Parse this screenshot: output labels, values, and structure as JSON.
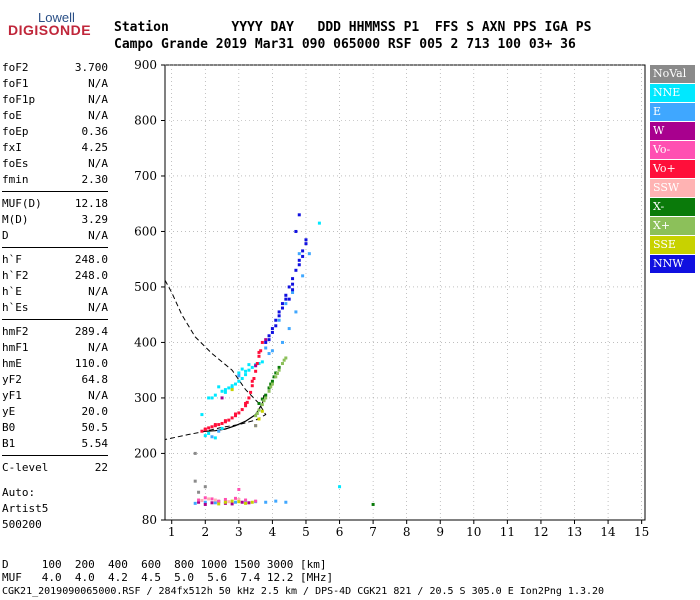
{
  "logo": {
    "line1": "Lowell",
    "line2": "DIGISONDE"
  },
  "header": {
    "row1": "Station        YYYY DAY   DDD HHMMSS P1  FFS S AXN PPS IGA PS",
    "row2": "Campo Grande 2019 Mar31 090 065000 RSF 005 2 713 100 03+ 36"
  },
  "params": [
    {
      "label": "foF2",
      "value": "3.700"
    },
    {
      "label": "foF1",
      "value": "N/A"
    },
    {
      "label": "foF1p",
      "value": "N/A"
    },
    {
      "label": "foE",
      "value": "N/A"
    },
    {
      "label": "foEp",
      "value": "0.36"
    },
    {
      "label": "fxI",
      "value": "4.25"
    },
    {
      "label": "foEs",
      "value": "N/A"
    },
    {
      "label": "fmin",
      "value": "2.30"
    },
    {
      "label": "MUF(D)",
      "value": "12.18"
    },
    {
      "label": "M(D)",
      "value": "3.29"
    },
    {
      "label": "D",
      "value": "N/A"
    },
    {
      "label": "h`F",
      "value": "248.0"
    },
    {
      "label": "h`F2",
      "value": "248.0"
    },
    {
      "label": "h`E",
      "value": "N/A"
    },
    {
      "label": "h`Es",
      "value": "N/A"
    },
    {
      "label": "hmF2",
      "value": "289.4"
    },
    {
      "label": "hmF1",
      "value": "N/A"
    },
    {
      "label": "hmE",
      "value": "110.0"
    },
    {
      "label": "yF2",
      "value": "64.8"
    },
    {
      "label": "yF1",
      "value": "N/A"
    },
    {
      "label": "yE",
      "value": "20.0"
    },
    {
      "label": "B0",
      "value": "50.5"
    },
    {
      "label": "B1",
      "value": "5.54"
    },
    {
      "label": "C-level",
      "value": "22"
    }
  ],
  "auto": {
    "line1": "Auto:",
    "line2": "Artist5",
    "line3": "500200"
  },
  "legend": [
    {
      "name": "NoVal",
      "bg": "#8a8a8a",
      "fg": "#ffffff"
    },
    {
      "name": "NNE",
      "bg": "#00e8ff",
      "fg": "#ffffff"
    },
    {
      "name": "E",
      "bg": "#3fa7ff",
      "fg": "#ffffff"
    },
    {
      "name": "W",
      "bg": "#a8008e",
      "fg": "#ffffff"
    },
    {
      "name": "Vo-",
      "bg": "#ff4fb2",
      "fg": "#ffffff"
    },
    {
      "name": "Vo+",
      "bg": "#ff0f3a",
      "fg": "#ffffff"
    },
    {
      "name": "SSW",
      "bg": "#ffb3b3",
      "fg": "#ffffff"
    },
    {
      "name": "X-",
      "bg": "#0a7a0a",
      "fg": "#ffffff"
    },
    {
      "name": "X+",
      "bg": "#8cc05a",
      "fg": "#ffffff"
    },
    {
      "name": "SSE",
      "bg": "#c8d200",
      "fg": "#ffffff"
    },
    {
      "name": "NNW",
      "bg": "#1010e0",
      "fg": "#ffffff"
    }
  ],
  "bottom": {
    "d_row": "D     100  200  400  600  800 1000 1500 3000 [km]",
    "muf_row": "MUF   4.0  4.0  4.2  4.5  5.0  5.6  7.4 12.2 [MHz]",
    "footer": "CGK21_2019090065000.RSF / 284fx512h 50 kHz 2.5 km / DPS-4D CGK21 821 / 20.5 S 305.0 E Ion2Png 1.3.20"
  },
  "chart_data": {
    "type": "scatter",
    "xlabel": "",
    "ylabel": "",
    "xlim": [
      0.8,
      15.1
    ],
    "ylim": [
      80,
      900
    ],
    "x_ticks": [
      1,
      2,
      3,
      4,
      5,
      6,
      7,
      8,
      9,
      10,
      11,
      12,
      13,
      14,
      15
    ],
    "y_ticks": [
      80,
      200,
      300,
      400,
      500,
      600,
      700,
      800,
      900
    ],
    "grid": "dotted",
    "series": [
      {
        "name": "NNE",
        "color": "#00e8ff",
        "points": [
          [
            2.4,
            320
          ],
          [
            2.6,
            315
          ],
          [
            2.7,
            318
          ],
          [
            2.8,
            322
          ],
          [
            2.9,
            325
          ],
          [
            3.0,
            330
          ],
          [
            3.1,
            335
          ],
          [
            3.2,
            342
          ],
          [
            3.3,
            350
          ],
          [
            3.4,
            355
          ],
          [
            2.2,
            300
          ],
          [
            2.5,
            312
          ],
          [
            3.0,
            345
          ],
          [
            3.1,
            352
          ],
          [
            5.4,
            615
          ],
          [
            2.0,
            232
          ],
          [
            2.1,
            236
          ],
          [
            2.5,
            245
          ],
          [
            2.3,
            228
          ],
          [
            6.0,
            140
          ],
          [
            3.5,
            360
          ],
          [
            3.7,
            365
          ],
          [
            2.6,
            310
          ],
          [
            2.8,
            318
          ],
          [
            3.2,
            348
          ],
          [
            2.1,
            300
          ],
          [
            2.3,
            305
          ],
          [
            3.3,
            360
          ],
          [
            3.6,
            362
          ],
          [
            1.9,
            270
          ]
        ]
      },
      {
        "name": "E",
        "color": "#3fa7ff",
        "points": [
          [
            1.7,
            110
          ],
          [
            2.0,
            112
          ],
          [
            2.3,
            111
          ],
          [
            2.6,
            113
          ],
          [
            2.9,
            112
          ],
          [
            3.2,
            114
          ],
          [
            3.5,
            113
          ],
          [
            3.8,
            112
          ],
          [
            4.1,
            114
          ],
          [
            4.4,
            112
          ],
          [
            2.2,
            230
          ],
          [
            2.4,
            240
          ],
          [
            4.5,
            425
          ],
          [
            4.7,
            455
          ],
          [
            4.9,
            520
          ],
          [
            4.3,
            400
          ],
          [
            4.6,
            490
          ],
          [
            4.0,
            385
          ],
          [
            3.9,
            380
          ],
          [
            3.0,
            340
          ],
          [
            4.8,
            560
          ],
          [
            5.1,
            560
          ],
          [
            4.2,
            440
          ],
          [
            4.4,
            470
          ],
          [
            3.8,
            390
          ]
        ]
      },
      {
        "name": "W",
        "color": "#a8008e",
        "points": [
          [
            1.8,
            112
          ],
          [
            2.0,
            108
          ],
          [
            2.2,
            111
          ],
          [
            2.4,
            113
          ],
          [
            2.6,
            110
          ],
          [
            2.8,
            109
          ],
          [
            3.1,
            112
          ],
          [
            3.3,
            111
          ],
          [
            3.8,
            405
          ],
          [
            3.5,
            358
          ],
          [
            2.5,
            300
          ]
        ]
      },
      {
        "name": "Vo-",
        "color": "#ff4fb2",
        "points": [
          [
            1.8,
            116
          ],
          [
            2.0,
            120
          ],
          [
            2.2,
            118
          ],
          [
            2.4,
            114
          ],
          [
            2.6,
            117
          ],
          [
            2.9,
            119
          ],
          [
            3.2,
            116
          ],
          [
            3.5,
            114
          ],
          [
            3.0,
            135
          ]
        ]
      },
      {
        "name": "Vo+",
        "color": "#ff0f3a",
        "points": [
          [
            2.0,
            243
          ],
          [
            2.1,
            246
          ],
          [
            2.2,
            248
          ],
          [
            2.3,
            250
          ],
          [
            2.4,
            252
          ],
          [
            2.5,
            254
          ],
          [
            2.6,
            257
          ],
          [
            2.7,
            260
          ],
          [
            2.8,
            264
          ],
          [
            2.9,
            268
          ],
          [
            3.0,
            273
          ],
          [
            3.1,
            279
          ],
          [
            3.2,
            286
          ],
          [
            3.25,
            292
          ],
          [
            3.3,
            300
          ],
          [
            3.35,
            310
          ],
          [
            3.4,
            322
          ],
          [
            3.45,
            335
          ],
          [
            3.5,
            348
          ],
          [
            3.55,
            362
          ],
          [
            3.6,
            375
          ],
          [
            3.65,
            385
          ],
          [
            3.7,
            400
          ],
          [
            1.9,
            240
          ],
          [
            2.0,
            244
          ],
          [
            2.3,
            252
          ],
          [
            2.6,
            259
          ],
          [
            2.9,
            271
          ],
          [
            3.2,
            290
          ],
          [
            3.4,
            330
          ],
          [
            3.6,
            382
          ]
        ]
      },
      {
        "name": "SSW",
        "color": "#ffb3b3",
        "points": [
          [
            1.9,
            115
          ],
          [
            2.1,
            118
          ],
          [
            2.3,
            116
          ],
          [
            2.7,
            113
          ],
          [
            3.0,
            117
          ]
        ]
      },
      {
        "name": "X-",
        "color": "#0a7a0a",
        "points": [
          [
            3.6,
            290
          ],
          [
            3.8,
            305
          ],
          [
            3.9,
            318
          ],
          [
            4.0,
            330
          ],
          [
            4.1,
            345
          ],
          [
            4.2,
            355
          ],
          [
            3.7,
            298
          ],
          [
            3.95,
            325
          ],
          [
            4.05,
            338
          ],
          [
            7.0,
            108
          ]
        ]
      },
      {
        "name": "X+",
        "color": "#8cc05a",
        "points": [
          [
            3.5,
            268
          ],
          [
            3.6,
            278
          ],
          [
            3.7,
            288
          ],
          [
            3.8,
            300
          ],
          [
            3.9,
            312
          ],
          [
            4.0,
            325
          ],
          [
            4.1,
            338
          ],
          [
            4.2,
            350
          ],
          [
            4.3,
            362
          ],
          [
            4.4,
            372
          ],
          [
            3.55,
            272
          ],
          [
            3.75,
            295
          ],
          [
            3.95,
            320
          ],
          [
            4.15,
            344
          ],
          [
            4.35,
            368
          ]
        ]
      },
      {
        "name": "SSE",
        "color": "#c8d200",
        "points": [
          [
            2.6,
            112
          ],
          [
            2.8,
            114
          ],
          [
            3.0,
            113
          ],
          [
            3.2,
            110
          ],
          [
            3.4,
            112
          ],
          [
            2.4,
            109
          ],
          [
            3.5,
            250
          ],
          [
            3.6,
            262
          ],
          [
            3.7,
            276
          ],
          [
            2.8,
            315
          ]
        ]
      },
      {
        "name": "NNW",
        "color": "#1010e0",
        "points": [
          [
            3.8,
            400
          ],
          [
            3.9,
            412
          ],
          [
            4.0,
            425
          ],
          [
            4.1,
            440
          ],
          [
            4.2,
            455
          ],
          [
            4.3,
            470
          ],
          [
            4.4,
            485
          ],
          [
            4.5,
            500
          ],
          [
            4.6,
            515
          ],
          [
            4.7,
            530
          ],
          [
            4.8,
            548
          ],
          [
            4.9,
            565
          ],
          [
            5.0,
            585
          ],
          [
            4.7,
            600
          ],
          [
            4.8,
            630
          ],
          [
            4.5,
            478
          ],
          [
            4.6,
            495
          ],
          [
            4.2,
            448
          ],
          [
            4.3,
            462
          ],
          [
            4.4,
            478
          ],
          [
            4.6,
            505
          ],
          [
            4.8,
            540
          ],
          [
            5.0,
            578
          ],
          [
            4.9,
            555
          ],
          [
            4.1,
            430
          ],
          [
            4.0,
            418
          ],
          [
            3.9,
            405
          ]
        ]
      },
      {
        "name": "NoVal",
        "color": "#8a8a8a",
        "points": [
          [
            1.7,
            200
          ],
          [
            1.7,
            150
          ],
          [
            1.8,
            130
          ],
          [
            2.0,
            140
          ],
          [
            3.5,
            250
          ]
        ]
      }
    ],
    "profile_curve": [
      [
        2.0,
        240
      ],
      [
        2.3,
        241
      ],
      [
        2.6,
        244
      ],
      [
        2.9,
        250
      ],
      [
        3.2,
        258
      ],
      [
        3.5,
        270
      ],
      [
        3.7,
        290
      ],
      [
        3.75,
        305
      ]
    ],
    "dashed_curve": [
      [
        0.8,
        512
      ],
      [
        1.0,
        490
      ],
      [
        1.3,
        450
      ],
      [
        1.7,
        410
      ],
      [
        2.2,
        380
      ],
      [
        2.8,
        350
      ],
      [
        3.2,
        315
      ],
      [
        3.6,
        290
      ],
      [
        3.8,
        270
      ],
      [
        3.5,
        260
      ],
      [
        3.0,
        252
      ],
      [
        2.5,
        247
      ],
      [
        2.0,
        240
      ],
      [
        1.5,
        234
      ],
      [
        0.8,
        225
      ]
    ]
  }
}
